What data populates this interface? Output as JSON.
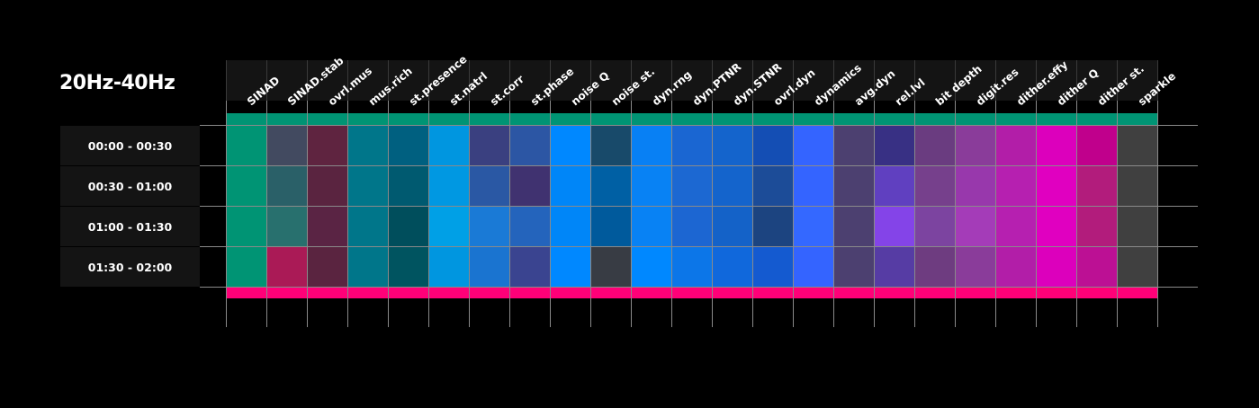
{
  "chart_data": {
    "type": "heatmap",
    "title": "20Hz-40Hz",
    "columns": [
      "SINAD",
      "SINAD.stab",
      "ovrl.mus",
      "mus.rich",
      "st.presence",
      "st.natrl",
      "st.corr",
      "st.phase",
      "noise Q",
      "noise st.",
      "dyn.rng",
      "dyn.PTNR",
      "dyn.STNR",
      "ovrl.dyn",
      "dynamics",
      "avg.dyn",
      "rel.lvl",
      "bit depth",
      "digit.res",
      "dither.effy",
      "dither Q",
      "dither st.",
      "sparkle"
    ],
    "rows": [
      "00:00 - 00:30",
      "00:30 - 01:00",
      "01:00 - 01:30",
      "01:30 - 02:00"
    ],
    "cell_colors": [
      [
        "#009474",
        "#424a60",
        "#5f2440",
        "#00768a",
        "#006080",
        "#0096e0",
        "#3a4080",
        "#2c56a4",
        "#0088ff",
        "#184a6a",
        "#0880f4",
        "#1a66d2",
        "#1464cc",
        "#144eb4",
        "#3464ff",
        "#4c4070",
        "#383084",
        "#6a3c80",
        "#8a3c9a",
        "#b21ea8",
        "#dc00bc",
        "#c0008c",
        "#404040"
      ],
      [
        "#009474",
        "#2a6068",
        "#5a2440",
        "#00768a",
        "#005a70",
        "#0098e2",
        "#2a58a4",
        "#403270",
        "#0086f8",
        "#0060a4",
        "#0882f4",
        "#1c68d2",
        "#1464cc",
        "#1c4c98",
        "#3464ff",
        "#4c4070",
        "#6040c0",
        "#76408c",
        "#9838ac",
        "#b620b0",
        "#e000c0",
        "#b21c7c",
        "#404040"
      ],
      [
        "#009474",
        "#28706e",
        "#5a2444",
        "#00768a",
        "#004e5c",
        "#00a0e6",
        "#1a7ad6",
        "#2464bc",
        "#0086f8",
        "#005a9c",
        "#0882f4",
        "#1c66d2",
        "#1462c8",
        "#1c4480",
        "#3468ff",
        "#4c4070",
        "#8444e8",
        "#7c44a0",
        "#a43cb8",
        "#b620b0",
        "#e000c0",
        "#b21c7c",
        "#404040"
      ],
      [
        "#009474",
        "#aa1a56",
        "#5a2440",
        "#00768a",
        "#005460",
        "#0096e0",
        "#1a74d0",
        "#3a4490",
        "#0088ff",
        "#383c44",
        "#0088ff",
        "#0c76e8",
        "#1068dc",
        "#145ad0",
        "#3464ff",
        "#4c4070",
        "#563ca4",
        "#6e3c80",
        "#8a3c9a",
        "#b21ea8",
        "#dc00bc",
        "#bc1094",
        "#404040"
      ]
    ],
    "top_bar_color": "#009474",
    "bottom_bar_color": "#ff0078",
    "grid": true,
    "background": "#000000"
  }
}
